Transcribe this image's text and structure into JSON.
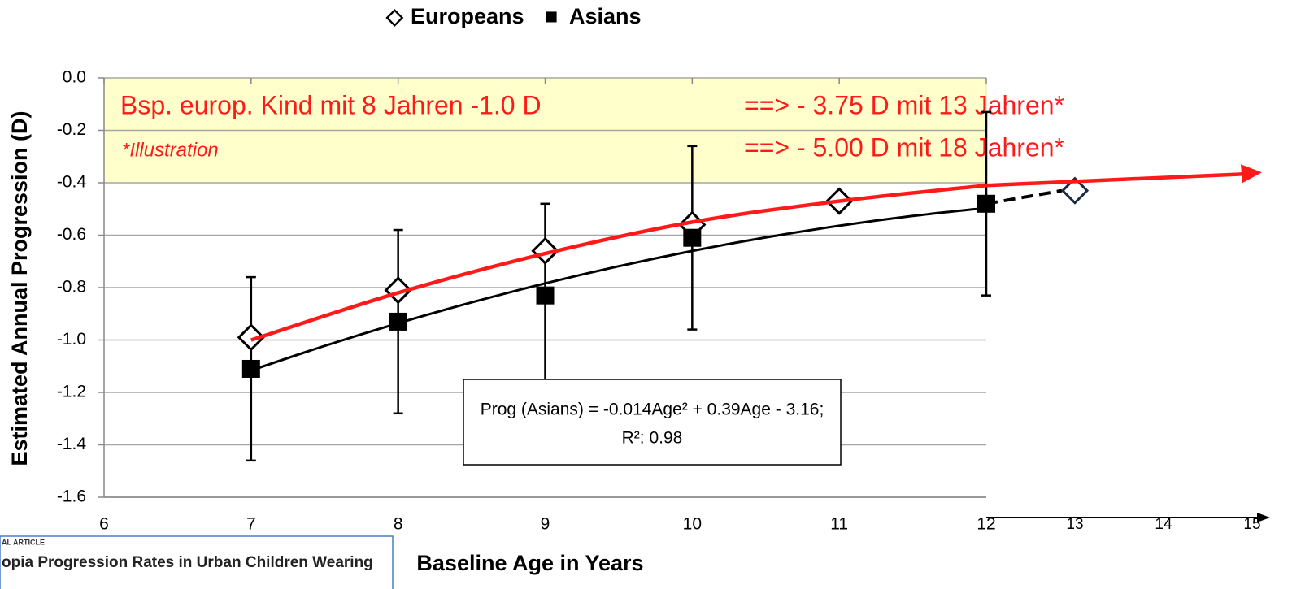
{
  "chart_data": {
    "type": "scatter",
    "xlabel": "Baseline Age in Years",
    "ylabel": "Estimated Annual Progression (D)",
    "xlim": [
      6,
      12
    ],
    "xticks": [
      6,
      7,
      8,
      9,
      10,
      11,
      12
    ],
    "x2lim": [
      12,
      15
    ],
    "x2ticks": [
      13,
      14,
      15
    ],
    "ylim": [
      -1.6,
      0
    ],
    "yticks": [
      {
        "value": 0,
        "label": "0.0"
      },
      -0.2,
      -0.4,
      -0.6,
      -0.8,
      {
        "value": -1,
        "label": "-1.0"
      },
      -1.2,
      -1.4,
      -1.6
    ],
    "grid": true,
    "series": [
      {
        "name": "Europeans",
        "marker": "diamond",
        "color": "#000000",
        "x": [
          7,
          8,
          9,
          10,
          11
        ],
        "values": [
          -0.99,
          -0.81,
          -0.66,
          -0.56,
          -0.47
        ]
      },
      {
        "name": "Asians",
        "marker": "square",
        "color": "#000000",
        "x": [
          7,
          8,
          9,
          10,
          12
        ],
        "values": [
          -1.11,
          -0.93,
          -0.83,
          -0.61,
          -0.48
        ],
        "errors": [
          0.35,
          0.35,
          0.35,
          0.35,
          0.35
        ]
      }
    ],
    "extrapolation": {
      "x2": 13,
      "value": -0.43,
      "color": "#1a2a44"
    },
    "fit": {
      "color": "#000000",
      "x": [
        7,
        7.5,
        8,
        8.5,
        9,
        9.5,
        10,
        10.5,
        11,
        11.5,
        12
      ],
      "values": [
        -1.116,
        -1.0225,
        -0.936,
        -0.8565,
        -0.784,
        -0.7185,
        -0.66,
        -0.6085,
        -0.564,
        -0.5265,
        -0.496
      ]
    },
    "illustration": {
      "color": "#ff1a1a",
      "x": [
        7,
        8,
        9,
        10,
        11,
        12
      ],
      "values": [
        -1.0,
        -0.82,
        -0.67,
        -0.55,
        -0.47,
        -0.41
      ]
    },
    "equation": "Prog  (Asians) = -0.014Age² + 0.39Age - 3.16;",
    "r_squared": "R²: 0.98",
    "annotations": [
      "Bsp. europ. Kind mit 8 Jahren -1.0 D",
      "==> - 3.75 D mit 13 Jahren*",
      "==> - 5.00 D mit 18 Jahren*",
      "*Illustration"
    ],
    "article": {
      "kind": "AL ARTICLE",
      "title": "opia Progression Rates in Urban Children Wearing"
    }
  }
}
